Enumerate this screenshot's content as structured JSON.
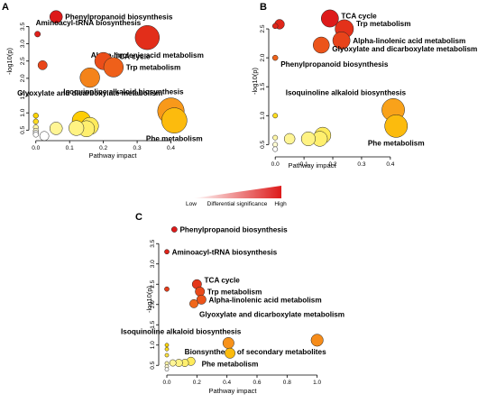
{
  "chart_data": [
    {
      "panel": "A",
      "type": "scatter",
      "xlabel": "Pathway impact",
      "ylabel": "-log10(p)",
      "xlim": [
        -0.01,
        0.46
      ],
      "ylim": [
        0.3,
        3.85
      ],
      "xticks": [
        0.0,
        0.1,
        0.2,
        0.3,
        0.4
      ],
      "yticks": [
        0.5,
        1.0,
        1.5,
        2.0,
        2.5,
        3.0,
        3.5
      ],
      "points": [
        {
          "x": 0.06,
          "y": 3.78,
          "size": 2.2,
          "heat": 1.0,
          "label": "Phenylpropanoid biosynthesis",
          "anchor": "right",
          "dy": 0
        },
        {
          "x": 0.005,
          "y": 3.28,
          "size": 1.0,
          "heat": 0.98,
          "label": "Aminoacyl-tRNA biosynthesis",
          "anchor": "left",
          "dy": -10
        },
        {
          "x": 0.33,
          "y": 3.18,
          "size": 4.2,
          "heat": 0.93,
          "label": "Alpha-linolenic acid metabolism",
          "anchor": "below",
          "dy": 0
        },
        {
          "x": 0.02,
          "y": 2.38,
          "size": 1.6,
          "heat": 0.85,
          "label": "",
          "anchor": "none",
          "dy": 0
        },
        {
          "x": 0.2,
          "y": 2.5,
          "size": 3.0,
          "heat": 0.82,
          "label": "TCA cycle",
          "anchor": "right",
          "dy": -5
        },
        {
          "x": 0.23,
          "y": 2.32,
          "size": 3.4,
          "heat": 0.76,
          "label": "Trp metabolism",
          "anchor": "right",
          "dy": 0
        },
        {
          "x": 0.16,
          "y": 2.02,
          "size": 3.4,
          "heat": 0.65,
          "label": "Glyoxylate and dicarboxylate metabolism",
          "anchor": "below",
          "dy": 0
        },
        {
          "x": 0.4,
          "y": 1.05,
          "size": 4.6,
          "heat": 0.58,
          "label": "Isoquinoline alkaloid biosynthesis",
          "anchor": "above-left",
          "dy": 0
        },
        {
          "x": 0.41,
          "y": 0.78,
          "size": 4.4,
          "heat": 0.45,
          "label": "Phe metabolism",
          "anchor": "below",
          "dy": 0
        },
        {
          "x": 0.135,
          "y": 0.78,
          "size": 3.2,
          "heat": 0.38,
          "label": "",
          "anchor": "none",
          "dy": 0
        },
        {
          "x": 0.16,
          "y": 0.62,
          "size": 3.0,
          "heat": 0.2,
          "label": "",
          "anchor": "none",
          "dy": 0
        },
        {
          "x": 0.15,
          "y": 0.54,
          "size": 2.8,
          "heat": 0.17,
          "label": "",
          "anchor": "none",
          "dy": 0
        },
        {
          "x": 0.12,
          "y": 0.56,
          "size": 2.6,
          "heat": 0.14,
          "label": "",
          "anchor": "none",
          "dy": 0
        },
        {
          "x": 0.06,
          "y": 0.55,
          "size": 2.2,
          "heat": 0.12,
          "label": "",
          "anchor": "none",
          "dy": 0
        },
        {
          "x": 0.0,
          "y": 0.92,
          "size": 0.9,
          "heat": 0.35,
          "label": "",
          "anchor": "none",
          "dy": 0
        },
        {
          "x": 0.0,
          "y": 0.75,
          "size": 0.9,
          "heat": 0.3,
          "label": "",
          "anchor": "none",
          "dy": 0
        },
        {
          "x": 0.0,
          "y": 0.58,
          "size": 0.9,
          "heat": 0.1,
          "label": "",
          "anchor": "none",
          "dy": 0
        },
        {
          "x": 0.0,
          "y": 0.48,
          "size": 0.9,
          "heat": 0.05,
          "label": "",
          "anchor": "none",
          "dy": 0
        },
        {
          "x": 0.0,
          "y": 0.42,
          "size": 0.9,
          "heat": 0.0,
          "label": "",
          "anchor": "none",
          "dy": 0
        },
        {
          "x": 0.0,
          "y": 0.37,
          "size": 0.9,
          "heat": 0.0,
          "label": "",
          "anchor": "none",
          "dy": 0
        },
        {
          "x": 0.025,
          "y": 0.33,
          "size": 1.6,
          "heat": 0.0,
          "label": "",
          "anchor": "none",
          "dy": 0
        }
      ]
    },
    {
      "panel": "B",
      "type": "scatter",
      "xlabel": "Pathway impact",
      "ylabel": "-log10(p)",
      "xlim": [
        -0.01,
        0.46
      ],
      "ylim": [
        0.35,
        2.75
      ],
      "xticks": [
        0.0,
        0.1,
        0.2,
        0.3,
        0.4
      ],
      "yticks": [
        0.5,
        1.0,
        1.5,
        2.0,
        2.5
      ],
      "points": [
        {
          "x": 0.19,
          "y": 2.68,
          "size": 3.2,
          "heat": 1.0,
          "label": "TCA cycle",
          "anchor": "right",
          "dy": -3
        },
        {
          "x": 0.24,
          "y": 2.5,
          "size": 3.4,
          "heat": 0.92,
          "label": "Trp metabolism",
          "anchor": "right",
          "dy": -6
        },
        {
          "x": 0.015,
          "y": 2.58,
          "size": 1.8,
          "heat": 0.96,
          "label": "",
          "anchor": "none",
          "dy": 0
        },
        {
          "x": 0.0,
          "y": 2.55,
          "size": 1.0,
          "heat": 0.96,
          "label": "",
          "anchor": "none",
          "dy": 0
        },
        {
          "x": 0.23,
          "y": 2.3,
          "size": 3.2,
          "heat": 0.86,
          "label": "Alpha-linolenic acid metabolism",
          "anchor": "right",
          "dy": 0
        },
        {
          "x": 0.16,
          "y": 2.22,
          "size": 3.0,
          "heat": 0.8,
          "label": "Glyoxylate and dicarboxylate metabolism",
          "anchor": "right",
          "dy": 4
        },
        {
          "x": 0.0,
          "y": 2.0,
          "size": 1.0,
          "heat": 0.75,
          "label": "Phenylpropanoid biosynthesis",
          "anchor": "right",
          "dy": 7
        },
        {
          "x": 0.41,
          "y": 1.1,
          "size": 4.2,
          "heat": 0.55,
          "label": "Isoquinoline alkaloid biosynthesis",
          "anchor": "above-left",
          "dy": 0
        },
        {
          "x": 0.42,
          "y": 0.82,
          "size": 4.2,
          "heat": 0.45,
          "label": "Phe metabolism",
          "anchor": "below",
          "dy": 0
        },
        {
          "x": 0.165,
          "y": 0.66,
          "size": 3.0,
          "heat": 0.2,
          "label": "",
          "anchor": "none",
          "dy": 0
        },
        {
          "x": 0.155,
          "y": 0.6,
          "size": 2.8,
          "heat": 0.17,
          "label": "",
          "anchor": "none",
          "dy": 0
        },
        {
          "x": 0.115,
          "y": 0.6,
          "size": 2.6,
          "heat": 0.14,
          "label": "",
          "anchor": "none",
          "dy": 0
        },
        {
          "x": 0.05,
          "y": 0.6,
          "size": 2.0,
          "heat": 0.12,
          "label": "",
          "anchor": "none",
          "dy": 0
        },
        {
          "x": 0.0,
          "y": 1.0,
          "size": 0.9,
          "heat": 0.3,
          "label": "",
          "anchor": "none",
          "dy": 0
        },
        {
          "x": 0.0,
          "y": 0.62,
          "size": 0.9,
          "heat": 0.1,
          "label": "",
          "anchor": "none",
          "dy": 0
        },
        {
          "x": 0.0,
          "y": 0.5,
          "size": 0.9,
          "heat": 0.05,
          "label": "",
          "anchor": "none",
          "dy": 0
        },
        {
          "x": 0.0,
          "y": 0.42,
          "size": 0.9,
          "heat": 0.0,
          "label": "",
          "anchor": "none",
          "dy": 0
        }
      ]
    },
    {
      "panel": "C",
      "type": "scatter",
      "xlabel": "Pathway impact",
      "ylabel": "-log10(p)",
      "xlim": [
        -0.03,
        1.05
      ],
      "ylim": [
        0.35,
        3.95
      ],
      "xticks": [
        0.0,
        0.2,
        0.4,
        0.6,
        0.8,
        1.0
      ],
      "yticks": [
        0.5,
        1.0,
        1.5,
        2.0,
        2.5,
        3.0,
        3.5
      ],
      "points": [
        {
          "x": 0.05,
          "y": 3.85,
          "size": 1.2,
          "heat": 1.0,
          "label": "Phenylpropanoid biosynthesis",
          "anchor": "right",
          "dy": 0
        },
        {
          "x": 0.0,
          "y": 3.3,
          "size": 1.0,
          "heat": 0.97,
          "label": "Aminoacyl-tRNA biosynthesis",
          "anchor": "right",
          "dy": 0
        },
        {
          "x": 0.2,
          "y": 2.5,
          "size": 2.0,
          "heat": 0.9,
          "label": "TCA cycle",
          "anchor": "right",
          "dy": -5
        },
        {
          "x": 0.22,
          "y": 2.32,
          "size": 2.0,
          "heat": 0.84,
          "label": "Trp metabolism",
          "anchor": "right",
          "dy": 0
        },
        {
          "x": 0.23,
          "y": 2.12,
          "size": 2.0,
          "heat": 0.8,
          "label": "Alpha-linolenic acid metabolism",
          "anchor": "right",
          "dy": 0
        },
        {
          "x": 0.18,
          "y": 2.02,
          "size": 1.8,
          "heat": 0.74,
          "label": "Glyoxylate and dicarboxylate metabolism",
          "anchor": "below-right",
          "dy": 0
        },
        {
          "x": 0.0,
          "y": 2.38,
          "size": 1.0,
          "heat": 0.88,
          "label": "",
          "anchor": "none",
          "dy": 0
        },
        {
          "x": 0.41,
          "y": 1.05,
          "size": 2.4,
          "heat": 0.6,
          "label": "Isoquinoline alkaloid biosynthesis",
          "anchor": "above-left",
          "dy": 0
        },
        {
          "x": 1.0,
          "y": 1.12,
          "size": 2.6,
          "heat": 0.62,
          "label": "Bionsynthesis of secondary metabolites",
          "anchor": "below-left",
          "dy": 0
        },
        {
          "x": 0.42,
          "y": 0.8,
          "size": 2.2,
          "heat": 0.45,
          "label": "Phe metabolism",
          "anchor": "below",
          "dy": 0
        },
        {
          "x": 0.16,
          "y": 0.6,
          "size": 1.8,
          "heat": 0.2,
          "label": "",
          "anchor": "none",
          "dy": 0
        },
        {
          "x": 0.12,
          "y": 0.56,
          "size": 1.6,
          "heat": 0.17,
          "label": "",
          "anchor": "none",
          "dy": 0
        },
        {
          "x": 0.08,
          "y": 0.56,
          "size": 1.6,
          "heat": 0.14,
          "label": "",
          "anchor": "none",
          "dy": 0
        },
        {
          "x": 0.04,
          "y": 0.56,
          "size": 1.4,
          "heat": 0.12,
          "label": "",
          "anchor": "none",
          "dy": 0
        },
        {
          "x": 0.0,
          "y": 1.0,
          "size": 0.8,
          "heat": 0.35,
          "label": "",
          "anchor": "none",
          "dy": 0
        },
        {
          "x": 0.0,
          "y": 0.9,
          "size": 0.8,
          "heat": 0.3,
          "label": "",
          "anchor": "none",
          "dy": 0
        },
        {
          "x": 0.0,
          "y": 0.75,
          "size": 0.8,
          "heat": 0.25,
          "label": "",
          "anchor": "none",
          "dy": 0
        },
        {
          "x": 0.0,
          "y": 0.55,
          "size": 0.8,
          "heat": 0.1,
          "label": "",
          "anchor": "none",
          "dy": 0
        },
        {
          "x": 0.0,
          "y": 0.47,
          "size": 0.8,
          "heat": 0.05,
          "label": "",
          "anchor": "none",
          "dy": 0
        },
        {
          "x": 0.0,
          "y": 0.4,
          "size": 0.8,
          "heat": 0.0,
          "label": "",
          "anchor": "none",
          "dy": 0
        }
      ]
    }
  ],
  "legend": {
    "low": "Low",
    "high": "High",
    "title": "Differential significance",
    "colors": [
      "#ffffff",
      "#fff27a",
      "#ffd400",
      "#f9a21a",
      "#ee5a1a",
      "#dd1a1a"
    ]
  }
}
